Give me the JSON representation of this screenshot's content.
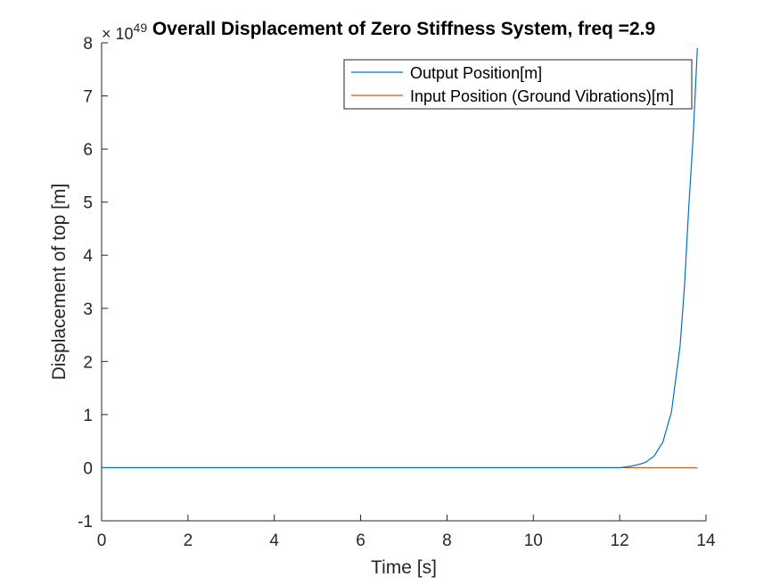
{
  "chart_data": {
    "type": "line",
    "title": "Overall Displacement of Zero Stiffness System, freq =2.9",
    "xlabel": "Time [s]",
    "ylabel": "Displacement of top [m]",
    "y_exponent_label": "× 10",
    "y_exponent_power": "49",
    "xlim": [
      0,
      14
    ],
    "ylim": [
      -1,
      8
    ],
    "x_ticks": [
      0,
      2,
      4,
      6,
      8,
      10,
      12,
      14
    ],
    "x_tick_labels": [
      "0",
      "2",
      "4",
      "6",
      "8",
      "10",
      "12",
      "14"
    ],
    "y_ticks": [
      -1,
      0,
      1,
      2,
      3,
      4,
      5,
      6,
      7,
      8
    ],
    "y_tick_labels": [
      "-1",
      "0",
      "1",
      "2",
      "3",
      "4",
      "5",
      "6",
      "7",
      "8"
    ],
    "grid": false,
    "legend_position": "top-right",
    "series": [
      {
        "name": "Output Position[m]",
        "color": "#0072BD",
        "x": [
          0,
          2,
          4,
          6,
          8,
          10,
          12,
          12.2,
          12.4,
          12.6,
          12.8,
          13.0,
          13.2,
          13.4,
          13.5,
          13.6,
          13.7,
          13.8
        ],
        "y": [
          0,
          0,
          0,
          0,
          0,
          0,
          0.0,
          0.02,
          0.05,
          0.1,
          0.22,
          0.48,
          1.05,
          2.3,
          3.4,
          4.9,
          6.2,
          7.9
        ]
      },
      {
        "name": "Input Position (Ground Vibrations)[m]",
        "color": "#D95319",
        "x": [
          0,
          13.8
        ],
        "y": [
          0,
          0
        ]
      }
    ]
  }
}
